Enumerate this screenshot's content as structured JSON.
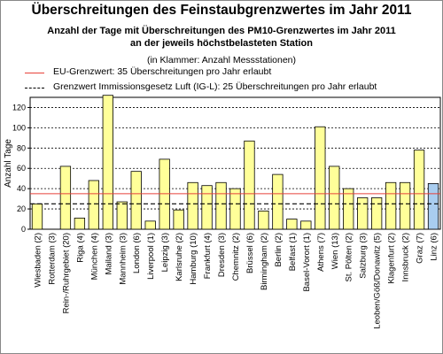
{
  "chart_data": {
    "type": "bar",
    "title": "Überschreitungen des Feinstaubgrenzwertes im Jahr 2011",
    "subtitle_line1": "Anzahl der Tage mit Überschreitungen des PM10-Grenzwertes im Jahr 2011",
    "subtitle_line2": "an der jeweils höchstbelasteten Station",
    "note": "(in Klammer: Anzahl Messstationen)",
    "ylabel": "Anzahl Tage",
    "xlabel": "",
    "ylim": [
      0,
      130
    ],
    "yticks": [
      0,
      20,
      40,
      60,
      80,
      100,
      120
    ],
    "grid": "dashed horizontal",
    "categories": [
      "Wiesbaden (2)",
      "Rotterdam (3)",
      "Rein-/Ruhrgebiet (20)",
      "Riga (4)",
      "München (4)",
      "Mailand (3)",
      "Mannheim (3)",
      "London (6)",
      "Liverpool (1)",
      "Leipzig (3)",
      "Karlsruhe (2)",
      "Hamburg (10)",
      "Frankfurt (4)",
      "Dresden (3)",
      "Chemnitz (2)",
      "Brüssel (6)",
      "Birmingham (2)",
      "Berlin (2)",
      "Belfast (1)",
      "Basel-Vorort (1)",
      "Athens (7)",
      "Wien (13)",
      "St. Pölten (2)",
      "Salzburg (3)",
      "Leoben/Göß/Donawitz (5)",
      "Klagenfurt (2)",
      "Innsbruck (2)",
      "Graz (7)",
      "Linz (6)"
    ],
    "values": [
      25,
      0,
      62,
      11,
      48,
      132,
      27,
      57,
      8,
      69,
      19,
      46,
      43,
      46,
      40,
      87,
      18,
      54,
      10,
      8,
      101,
      62,
      40,
      31,
      31,
      46,
      46,
      78,
      45
    ],
    "highlight": {
      "category": "Linz (6)",
      "color": "#a9cdf0"
    },
    "bar_color": "#ffff99",
    "reference_lines": [
      {
        "label": "EU-Grenzwert: 35 Überschreitungen pro Jahr erlaubt",
        "value": 35,
        "color": "#e8413a",
        "style": "solid"
      },
      {
        "label": "Grenzwert Immissionsgesetz Luft (IG-L): 25 Überschreitungen pro Jahr erlaubt",
        "value": 25,
        "color": "#000000",
        "style": "dashed"
      }
    ]
  }
}
